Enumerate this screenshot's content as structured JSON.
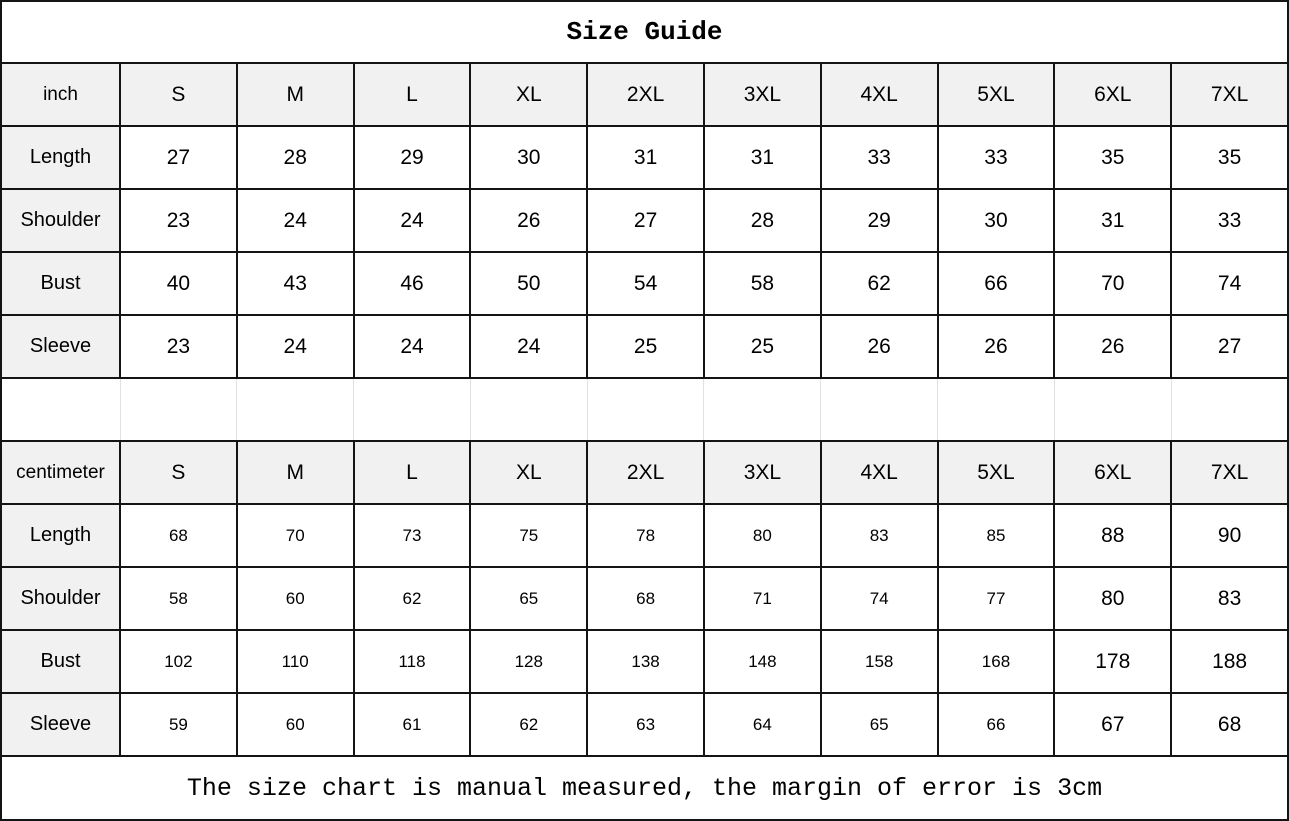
{
  "title": "Size Guide",
  "footer": "The size chart is manual measured, the margin of error is 3cm",
  "tables": [
    {
      "unit": "inch",
      "sizes": [
        "S",
        "M",
        "L",
        "XL",
        "2XL",
        "3XL",
        "4XL",
        "5XL",
        "6XL",
        "7XL"
      ],
      "rows": [
        {
          "label": "Length",
          "values": [
            "27",
            "28",
            "29",
            "30",
            "31",
            "31",
            "33",
            "33",
            "35",
            "35"
          ]
        },
        {
          "label": "Shoulder",
          "values": [
            "23",
            "24",
            "24",
            "26",
            "27",
            "28",
            "29",
            "30",
            "31",
            "33"
          ]
        },
        {
          "label": "Bust",
          "values": [
            "40",
            "43",
            "46",
            "50",
            "54",
            "58",
            "62",
            "66",
            "70",
            "74"
          ]
        },
        {
          "label": "Sleeve",
          "values": [
            "23",
            "24",
            "24",
            "24",
            "25",
            "25",
            "26",
            "26",
            "26",
            "27"
          ]
        }
      ]
    },
    {
      "unit": "centimeter",
      "sizes": [
        "S",
        "M",
        "L",
        "XL",
        "2XL",
        "3XL",
        "4XL",
        "5XL",
        "6XL",
        "7XL"
      ],
      "rows": [
        {
          "label": "Length",
          "values": [
            "68",
            "70",
            "73",
            "75",
            "78",
            "80",
            "83",
            "85",
            "88",
            "90"
          ]
        },
        {
          "label": "Shoulder",
          "values": [
            "58",
            "60",
            "62",
            "65",
            "68",
            "71",
            "74",
            "77",
            "80",
            "83"
          ]
        },
        {
          "label": "Bust",
          "values": [
            "102",
            "110",
            "118",
            "128",
            "138",
            "148",
            "158",
            "168",
            "178",
            "188"
          ]
        },
        {
          "label": "Sleeve",
          "values": [
            "59",
            "60",
            "61",
            "62",
            "63",
            "64",
            "65",
            "66",
            "67",
            "68"
          ]
        }
      ]
    }
  ],
  "colors": {
    "background": "#ffffff",
    "header_bg": "#f1f1f1",
    "border": "#141414",
    "separator_line": "#e2e2e2",
    "text": "#000000"
  }
}
